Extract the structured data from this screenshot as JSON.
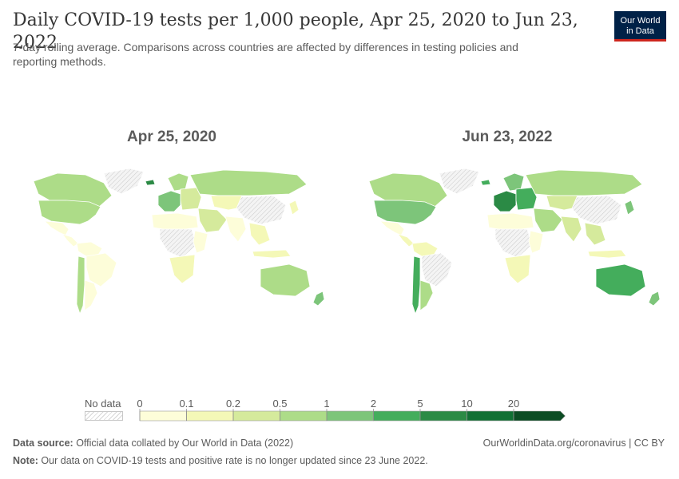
{
  "title": "Daily COVID-19 tests per 1,000 people, Apr 25, 2020 to Jun 23, 2022",
  "subtitle": "7-day rolling average. Comparisons across countries are affected by differences in testing policies and reporting methods.",
  "logo": {
    "line1": "Our World",
    "line2": "in Data"
  },
  "maps": [
    {
      "title": "Apr 25, 2020",
      "region_fills": {
        "greenland": "nodata",
        "canada": "0.5-1",
        "usa": "0.5-1",
        "mexico": "0-0.1",
        "central_america": "0-0.1",
        "south_america_north": "0-0.1",
        "brazil": "0-0.1",
        "chile": "0.5-1",
        "argentina": "0-0.1",
        "iceland": "5-10",
        "europe_west": "1-2",
        "scandinavia": "0.5-1",
        "europe_east": "0.2-0.5",
        "russia": "0.5-1",
        "north_africa": "0-0.1",
        "central_africa": "nodata",
        "east_africa": "0-0.1",
        "southern_africa": "0.1-0.2",
        "middle_east": "0.2-0.5",
        "central_asia": "0.1-0.2",
        "china": "nodata",
        "india": "0-0.1",
        "southeast_asia": "0.1-0.2",
        "japan": "0.1-0.2",
        "indonesia": "0.1-0.2",
        "australia": "0.5-1",
        "new_zealand": "1-2"
      }
    },
    {
      "title": "Jun 23, 2022",
      "region_fills": {
        "greenland": "nodata",
        "canada": "0.5-1",
        "usa": "1-2",
        "mexico": "0-0.1",
        "central_america": "0.1-0.2",
        "south_america_north": "0.1-0.2",
        "brazil": "nodata",
        "chile": "2-5",
        "argentina": "0.5-1",
        "iceland": "2-5",
        "europe_west": "5-10",
        "scandinavia": "1-2",
        "europe_east": "2-5",
        "russia": "0.5-1",
        "north_africa": "0-0.1",
        "central_africa": "nodata",
        "east_africa": "0-0.1",
        "southern_africa": "0.1-0.2",
        "middle_east": "0.5-1",
        "central_asia": "0.2-0.5",
        "china": "nodata",
        "india": "0.2-0.5",
        "southeast_asia": "0.2-0.5",
        "japan": "1-2",
        "indonesia": "0.1-0.2",
        "australia": "2-5",
        "new_zealand": "1-2"
      }
    }
  ],
  "legend": {
    "no_data_label": "No data",
    "ticks": [
      "0",
      "0.1",
      "0.2",
      "0.5",
      "1",
      "2",
      "5",
      "10",
      "20"
    ],
    "bins": [
      {
        "range": "0-0.1",
        "color": "#fdfdd9"
      },
      {
        "range": "0.1-0.2",
        "color": "#f4f8b7"
      },
      {
        "range": "0.2-0.5",
        "color": "#d5ea9c"
      },
      {
        "range": "0.5-1",
        "color": "#addc88"
      },
      {
        "range": "1-2",
        "color": "#7dc57a"
      },
      {
        "range": "2-5",
        "color": "#44ad5c"
      },
      {
        "range": "5-10",
        "color": "#2b8a45"
      },
      {
        "range": "10-20",
        "color": "#117034"
      },
      {
        "range": "20+",
        "color": "#0c4c24"
      }
    ],
    "nodata_color": "#e6e6e6"
  },
  "footer": {
    "source_label": "Data source:",
    "source_text": " Official data collated by Our World in Data (2022)",
    "note_label": "Note:",
    "note_text": " Our data on COVID-19 tests and positive rate is no longer updated since 23 June 2022.",
    "url": "OurWorldinData.org/coronavirus | CC BY"
  }
}
